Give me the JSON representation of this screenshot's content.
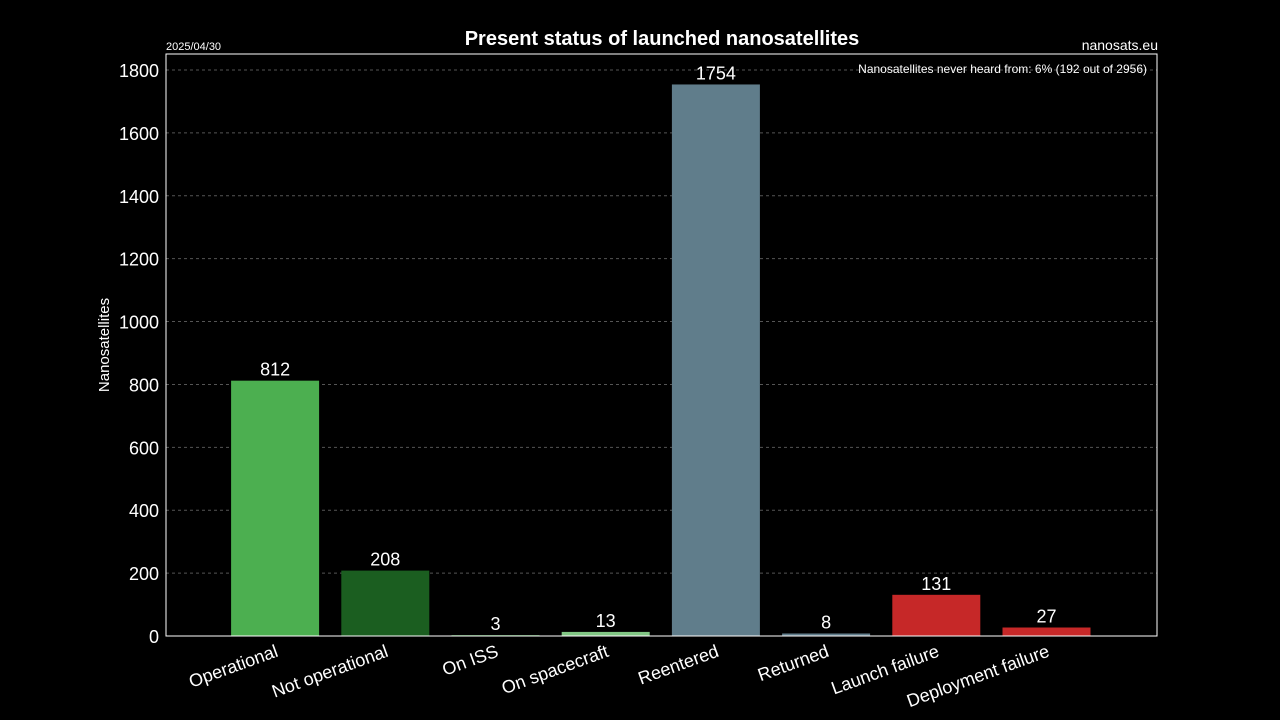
{
  "header": {
    "date": "2025/04/30",
    "site": "nanosats.eu"
  },
  "chart_data": {
    "type": "bar",
    "title": "Present status of launched nanosatellites",
    "ylabel": "Nanosatellites",
    "xlabel": "",
    "annotation": "Nanosatellites never heard from: 6% (192 out of 2956)",
    "categories": [
      "Operational",
      "Not operational",
      "On ISS",
      "On spacecraft",
      "Reentered",
      "Returned",
      "Launch failure",
      "Deployment failure"
    ],
    "values": [
      812,
      208,
      3,
      13,
      1754,
      8,
      131,
      27
    ],
    "colors": [
      "#4caf50",
      "#1b5e20",
      "#2e7d32",
      "#81c784",
      "#607d8b",
      "#607d8b",
      "#c62828",
      "#c62828"
    ],
    "ylim": [
      0,
      1850
    ],
    "yticks": [
      0,
      200,
      400,
      600,
      800,
      1000,
      1200,
      1400,
      1600,
      1800
    ],
    "grid": true,
    "background": "#000000",
    "foreground": "#ffffff"
  }
}
